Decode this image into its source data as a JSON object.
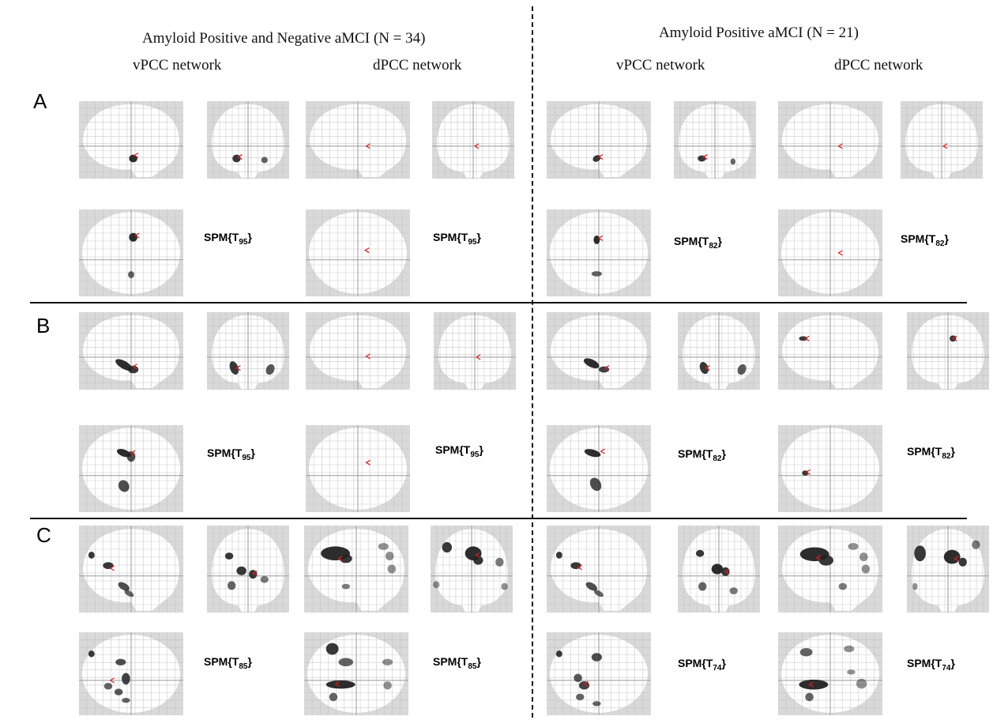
{
  "headers": {
    "left_group": "Amyloid Positive and Negative aMCI (N = 34)",
    "right_group": "Amyloid Positive aMCI (N = 21)",
    "vpcc_left": "vPCC network",
    "dpcc_left": "dPCC network",
    "vpcc_right": "vPCC network",
    "dpcc_right": "dPCC network"
  },
  "rows": [
    {
      "label": "A",
      "spm": [
        {
          "base": "SPM{T",
          "sub": "95",
          "end": "}"
        },
        {
          "base": "SPM{T",
          "sub": "95",
          "end": "}"
        },
        {
          "base": "SPM{T",
          "sub": "82",
          "end": "}"
        },
        {
          "base": "SPM{T",
          "sub": "82",
          "end": "}"
        }
      ]
    },
    {
      "label": "B",
      "spm": [
        {
          "base": "SPM{T",
          "sub": "95",
          "end": "}"
        },
        {
          "base": "SPM{T",
          "sub": "95",
          "end": "}"
        },
        {
          "base": "SPM{T",
          "sub": "82",
          "end": "}"
        },
        {
          "base": "SPM{T",
          "sub": "82",
          "end": "}"
        }
      ]
    },
    {
      "label": "C",
      "spm": [
        {
          "base": "SPM{T",
          "sub": "85",
          "end": "}"
        },
        {
          "base": "SPM{T",
          "sub": "85",
          "end": "}"
        },
        {
          "base": "SPM{T",
          "sub": "74",
          "end": "}"
        },
        {
          "base": "SPM{T",
          "sub": "74",
          "end": "}"
        }
      ]
    }
  ],
  "colors": {
    "background": "#ffffff",
    "glass_frame": "#d9d9d9",
    "grid": "#bfbfbf",
    "cursor": "#d62020",
    "blob": "#222222"
  }
}
